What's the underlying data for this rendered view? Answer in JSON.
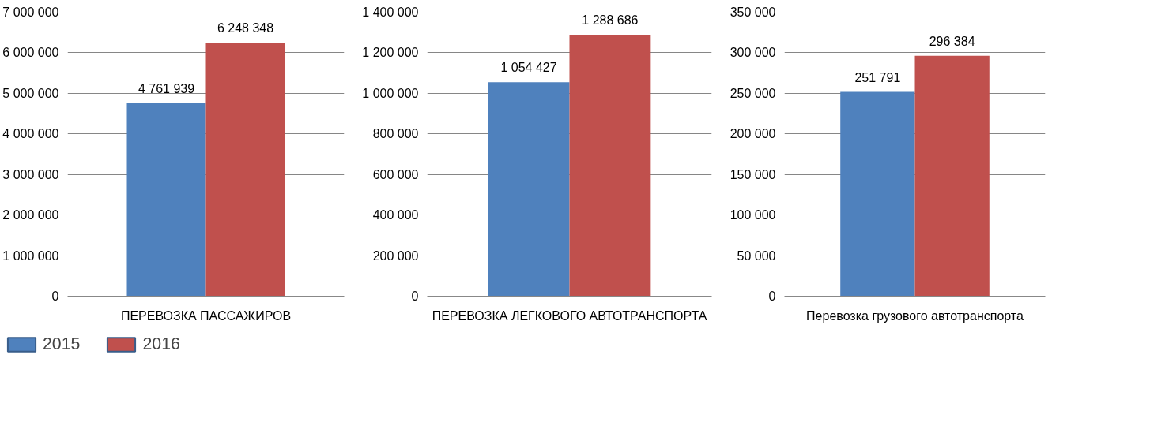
{
  "chart_data": [
    {
      "type": "bar",
      "categories": [
        "ПЕРЕВОЗКА ПАССАЖИРОВ"
      ],
      "series": [
        {
          "name": "2015",
          "color": "#4f81bd",
          "values": [
            4761939
          ]
        },
        {
          "name": "2016",
          "color": "#c0504d",
          "values": [
            6248348
          ]
        }
      ],
      "ylim": [
        0,
        7000000
      ],
      "yticks": [
        0,
        {
          "value": 1000000,
          "label": "1 000 000"
        },
        {
          "value": 2000000,
          "label": "2 000 000"
        },
        {
          "value": 3000000,
          "label": "3 000 000"
        },
        {
          "value": 4000000,
          "label": "4 000 000"
        },
        {
          "value": 5000000,
          "label": "5 000 000"
        },
        {
          "value": 6000000,
          "label": "6 000 000"
        },
        {
          "value": 7000000,
          "label": "7 000 000"
        }
      ],
      "value_labels": [
        "4 761 939",
        "6 248 348"
      ],
      "grid": "y",
      "legend": "bottom"
    },
    {
      "type": "bar",
      "categories": [
        "ПЕРЕВОЗКА ЛЕГКОВОГО АВТОТРАНСПОРТА"
      ],
      "series": [
        {
          "color": "#4f81bd",
          "values": [
            1054427
          ]
        },
        {
          "color": "#c0504d",
          "values": [
            1288686
          ]
        }
      ],
      "ylim": [
        0,
        1400000
      ],
      "yticks": [
        0,
        {
          "value": 200000,
          "label": "200 000"
        },
        {
          "value": 400000,
          "label": "400 000"
        },
        {
          "value": 600000,
          "label": "600 000"
        },
        {
          "value": 800000,
          "label": "800 000"
        },
        {
          "value": 1000000,
          "label": "1 000 000"
        },
        {
          "value": 1200000,
          "label": "1 200 000"
        },
        {
          "value": 1400000,
          "label": "1 400 000"
        }
      ],
      "value_labels": [
        "1 054 427",
        "1 288 686"
      ],
      "grid": "y"
    },
    {
      "type": "bar",
      "categories": [
        "Перевозка грузового автотранспорта"
      ],
      "series": [
        {
          "color": "#4f81bd",
          "values": [
            251791
          ]
        },
        {
          "color": "#c0504d",
          "values": [
            296384
          ]
        }
      ],
      "ylim": [
        0,
        350000
      ],
      "yticks": [
        0,
        {
          "value": 50000,
          "label": "50 000"
        },
        {
          "value": 100000,
          "label": "100 000"
        },
        {
          "value": 150000,
          "label": "150 000"
        },
        {
          "value": 200000,
          "label": "200 000"
        },
        {
          "value": 250000,
          "label": "250 000"
        },
        {
          "value": 300000,
          "label": "300 000"
        },
        {
          "value": 350000,
          "label": "350 000"
        }
      ],
      "value_labels": [
        "251 791",
        "296 384"
      ],
      "grid": "y"
    }
  ]
}
